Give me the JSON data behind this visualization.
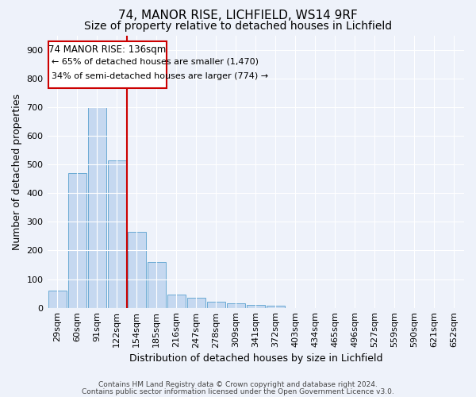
{
  "title1": "74, MANOR RISE, LICHFIELD, WS14 9RF",
  "title2": "Size of property relative to detached houses in Lichfield",
  "xlabel": "Distribution of detached houses by size in Lichfield",
  "ylabel": "Number of detached properties",
  "bar_labels": [
    "29sqm",
    "60sqm",
    "91sqm",
    "122sqm",
    "154sqm",
    "185sqm",
    "216sqm",
    "247sqm",
    "278sqm",
    "309sqm",
    "341sqm",
    "372sqm",
    "403sqm",
    "434sqm",
    "465sqm",
    "496sqm",
    "527sqm",
    "559sqm",
    "590sqm",
    "621sqm",
    "652sqm"
  ],
  "bar_values": [
    60,
    470,
    700,
    515,
    265,
    160,
    47,
    35,
    20,
    15,
    10,
    8,
    0,
    0,
    0,
    0,
    0,
    0,
    0,
    0,
    0
  ],
  "bar_color": "#c5d8f0",
  "bar_edge_color": "#6aaad4",
  "ylim": [
    0,
    950
  ],
  "yticks": [
    0,
    100,
    200,
    300,
    400,
    500,
    600,
    700,
    800,
    900
  ],
  "red_line_color": "#cc0000",
  "annotation_text1": "74 MANOR RISE: 136sqm",
  "annotation_text2": "← 65% of detached houses are smaller (1,470)",
  "annotation_text3": "34% of semi-detached houses are larger (774) →",
  "footer1": "Contains HM Land Registry data © Crown copyright and database right 2024.",
  "footer2": "Contains public sector information licensed under the Open Government Licence v3.0.",
  "background_color": "#eef2fa",
  "grid_color": "#ffffff",
  "annotation_box_color": "#ffffff",
  "annotation_border_color": "#cc0000",
  "title_fontsize": 11,
  "subtitle_fontsize": 10,
  "tick_fontsize": 8,
  "ylabel_fontsize": 9,
  "xlabel_fontsize": 9,
  "footer_fontsize": 6.5
}
